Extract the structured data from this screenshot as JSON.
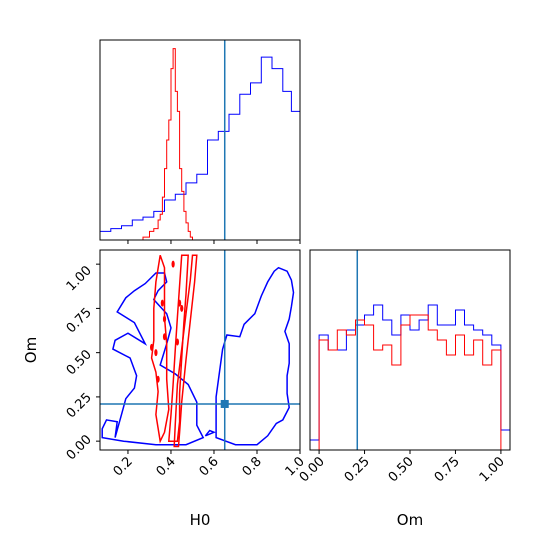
{
  "chart_data": {
    "type": "corner",
    "parameters": [
      "H0",
      "Om"
    ],
    "truths": {
      "H0": 0.65,
      "Om": 0.21
    },
    "colors": {
      "red": "#ff0000",
      "blue": "#0000ff",
      "truth": "#1f77b4"
    },
    "h0_hist": {
      "range": [
        0.07,
        1.0
      ],
      "red": {
        "edges": [
          0.27,
          0.3,
          0.32,
          0.34,
          0.35,
          0.36,
          0.37,
          0.38,
          0.39,
          0.4,
          0.41,
          0.42,
          0.43,
          0.44,
          0.45,
          0.46,
          0.47,
          0.48,
          0.49,
          0.5
        ],
        "values": [
          1,
          3,
          4,
          7,
          9,
          15,
          25,
          35,
          42,
          60,
          67,
          52,
          45,
          25,
          17,
          10,
          6,
          3,
          1
        ]
      },
      "blue": {
        "edges": [
          0.07,
          0.12,
          0.17,
          0.22,
          0.27,
          0.32,
          0.37,
          0.42,
          0.47,
          0.52,
          0.57,
          0.62,
          0.67,
          0.72,
          0.77,
          0.82,
          0.87,
          0.92,
          0.96,
          1.0
        ],
        "values": [
          3,
          4,
          5,
          7,
          8,
          10,
          14,
          16,
          20,
          23,
          35,
          38,
          44,
          51,
          55,
          64,
          60,
          52,
          45
        ]
      }
    },
    "om_hist": {
      "range": [
        -0.05,
        1.05
      ],
      "red": {
        "edges": [
          0.0,
          0.05,
          0.1,
          0.15,
          0.2,
          0.25,
          0.3,
          0.35,
          0.4,
          0.45,
          0.5,
          0.55,
          0.6,
          0.65,
          0.7,
          0.75,
          0.8,
          0.85,
          0.9,
          0.95,
          1.0
        ],
        "values": [
          22,
          20,
          24,
          23,
          26,
          25,
          20,
          21,
          17,
          25,
          27,
          27,
          24,
          22,
          19,
          23,
          19,
          22,
          17,
          20
        ]
      },
      "blue": {
        "edges": [
          -0.05,
          0.0,
          0.05,
          0.1,
          0.15,
          0.2,
          0.25,
          0.3,
          0.35,
          0.4,
          0.45,
          0.5,
          0.55,
          0.6,
          0.65,
          0.7,
          0.75,
          0.8,
          0.85,
          0.9,
          0.95,
          1.0,
          1.05
        ],
        "values": [
          2,
          23,
          20,
          20,
          24,
          25,
          27,
          29,
          26,
          23,
          27,
          24,
          26,
          29,
          25,
          25,
          28,
          25,
          24,
          23,
          21,
          4
        ]
      }
    },
    "contours": {
      "xrange": [
        0.07,
        1.0
      ],
      "yrange": [
        -0.05,
        1.08
      ],
      "blue": [
        [
          [
            0.08,
            0.02
          ],
          [
            0.08,
            0.07
          ],
          [
            0.1,
            0.12
          ],
          [
            0.15,
            0.11
          ],
          [
            0.14,
            0.02
          ],
          [
            0.17,
            0.15
          ],
          [
            0.19,
            0.24
          ],
          [
            0.23,
            0.3
          ],
          [
            0.24,
            0.37
          ],
          [
            0.21,
            0.47
          ],
          [
            0.13,
            0.52
          ],
          [
            0.14,
            0.57
          ],
          [
            0.2,
            0.61
          ],
          [
            0.28,
            0.55
          ],
          [
            0.23,
            0.67
          ],
          [
            0.15,
            0.73
          ],
          [
            0.19,
            0.81
          ],
          [
            0.23,
            0.85
          ],
          [
            0.28,
            0.89
          ],
          [
            0.33,
            0.95
          ],
          [
            0.37,
            0.95
          ],
          [
            0.38,
            0.9
          ],
          [
            0.34,
            0.85
          ],
          [
            0.32,
            0.8
          ],
          [
            0.38,
            0.72
          ],
          [
            0.4,
            0.64
          ],
          [
            0.38,
            0.55
          ],
          [
            0.35,
            0.43
          ],
          [
            0.42,
            0.38
          ],
          [
            0.48,
            0.32
          ],
          [
            0.52,
            0.22
          ],
          [
            0.52,
            0.09
          ],
          [
            0.55,
            0.02
          ],
          [
            0.47,
            -0.02
          ],
          [
            0.33,
            -0.02
          ],
          [
            0.18,
            0.0
          ],
          [
            0.08,
            0.02
          ]
        ],
        [
          [
            0.61,
            0.02
          ],
          [
            0.61,
            0.25
          ],
          [
            0.64,
            0.52
          ],
          [
            0.66,
            0.6
          ],
          [
            0.72,
            0.59
          ],
          [
            0.74,
            0.66
          ],
          [
            0.79,
            0.72
          ],
          [
            0.82,
            0.82
          ],
          [
            0.85,
            0.9
          ],
          [
            0.88,
            0.96
          ],
          [
            0.9,
            0.98
          ],
          [
            0.94,
            0.96
          ],
          [
            0.96,
            0.91
          ],
          [
            0.97,
            0.84
          ],
          [
            0.96,
            0.76
          ],
          [
            0.95,
            0.69
          ],
          [
            0.93,
            0.62
          ],
          [
            0.95,
            0.55
          ],
          [
            0.95,
            0.44
          ],
          [
            0.94,
            0.37
          ],
          [
            0.94,
            0.27
          ],
          [
            0.95,
            0.19
          ],
          [
            0.92,
            0.12
          ],
          [
            0.89,
            0.1
          ],
          [
            0.85,
            0.03
          ],
          [
            0.8,
            -0.02
          ],
          [
            0.7,
            -0.02
          ],
          [
            0.61,
            0.02
          ]
        ],
        [
          [
            0.56,
            0.03
          ],
          [
            0.58,
            0.06
          ],
          [
            0.6,
            0.05
          ],
          [
            0.56,
            0.03
          ]
        ]
      ],
      "red": [
        [
          [
            0.35,
            0.0
          ],
          [
            0.33,
            0.15
          ],
          [
            0.34,
            0.28
          ],
          [
            0.33,
            0.39
          ],
          [
            0.31,
            0.47
          ],
          [
            0.32,
            0.57
          ],
          [
            0.32,
            0.75
          ],
          [
            0.33,
            0.9
          ],
          [
            0.35,
            1.05
          ],
          [
            0.37,
            0.98
          ],
          [
            0.37,
            0.7
          ],
          [
            0.38,
            0.55
          ],
          [
            0.38,
            0.35
          ],
          [
            0.39,
            0.18
          ],
          [
            0.37,
            0.05
          ],
          [
            0.35,
            0.0
          ]
        ],
        [
          [
            0.39,
            0.0
          ],
          [
            0.4,
            0.15
          ],
          [
            0.41,
            0.32
          ],
          [
            0.42,
            0.52
          ],
          [
            0.43,
            0.7
          ],
          [
            0.44,
            0.88
          ],
          [
            0.45,
            1.05
          ],
          [
            0.48,
            1.05
          ],
          [
            0.47,
            0.83
          ],
          [
            0.46,
            0.67
          ],
          [
            0.45,
            0.47
          ],
          [
            0.44,
            0.27
          ],
          [
            0.44,
            0.11
          ],
          [
            0.43,
            0.0
          ],
          [
            0.39,
            0.0
          ]
        ],
        [
          [
            0.415,
            -0.03
          ],
          [
            0.42,
            0.1
          ],
          [
            0.43,
            0.32
          ],
          [
            0.45,
            0.52
          ],
          [
            0.47,
            0.72
          ],
          [
            0.49,
            0.91
          ],
          [
            0.5,
            1.05
          ],
          [
            0.52,
            1.05
          ],
          [
            0.51,
            0.9
          ],
          [
            0.49,
            0.68
          ],
          [
            0.47,
            0.46
          ],
          [
            0.45,
            0.22
          ],
          [
            0.44,
            0.05
          ],
          [
            0.435,
            -0.03
          ],
          [
            0.415,
            -0.03
          ]
        ]
      ],
      "red_dots": [
        [
          0.36,
          0.78
        ],
        [
          0.37,
          0.69
        ],
        [
          0.37,
          0.59
        ],
        [
          0.31,
          0.53
        ],
        [
          0.33,
          0.5
        ],
        [
          0.34,
          0.35
        ],
        [
          0.41,
          1.0
        ],
        [
          0.44,
          0.78
        ],
        [
          0.45,
          0.75
        ],
        [
          0.43,
          0.56
        ]
      ]
    },
    "tick_labels": {
      "h0_x": [
        "0.2",
        "0.4",
        "0.6",
        "0.8",
        "1.0"
      ],
      "om_y": [
        "0.00",
        "0.25",
        "0.50",
        "0.75",
        "1.00"
      ],
      "om_x": [
        "0.00",
        "0.25",
        "0.50",
        "0.75",
        "1.00"
      ]
    },
    "xlabel_left": "H0",
    "xlabel_right": "Om",
    "ylabel_left": "Om"
  }
}
